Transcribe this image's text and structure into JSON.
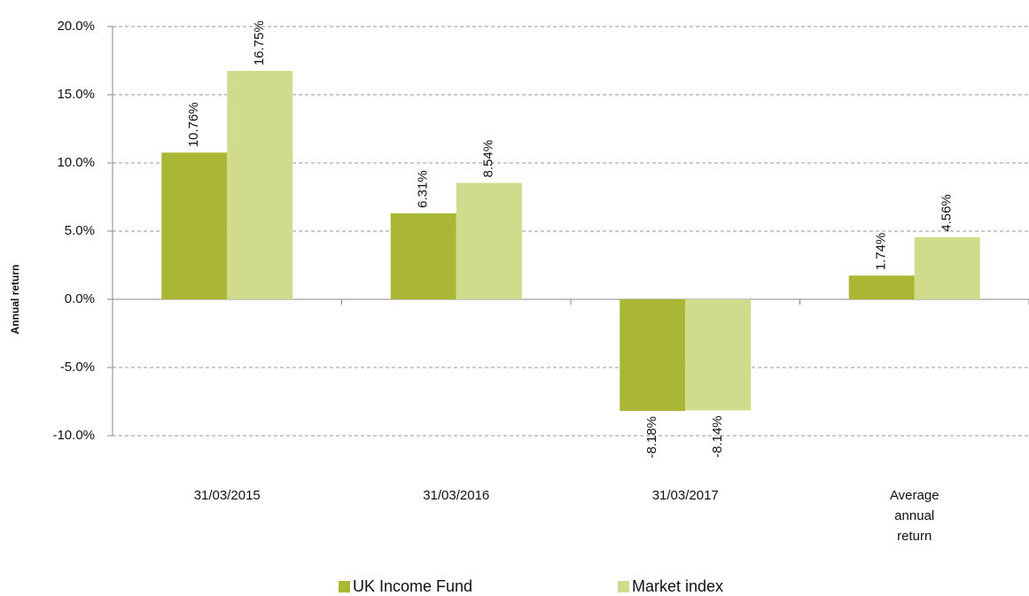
{
  "chart_data": {
    "type": "bar",
    "y_label": "Annual return",
    "categories": [
      "31/03/2015",
      "31/03/2016",
      "31/03/2017",
      "Average annual return"
    ],
    "series": [
      {
        "name": "UK Income Fund",
        "color": "#a9b734",
        "values": [
          10.76,
          6.31,
          -8.18,
          1.74
        ],
        "value_labels": [
          "10.76%",
          "6.31%",
          "-8.18%",
          "1.74%"
        ]
      },
      {
        "name": "Market index",
        "color": "#d0dc8b",
        "values": [
          16.75,
          8.54,
          -8.14,
          4.56
        ],
        "value_labels": [
          "16.75%",
          "8.54%",
          "-8.14%",
          "4.56%"
        ]
      }
    ],
    "ylim": [
      -10,
      20
    ],
    "yticks": [
      {
        "value": -10,
        "label": "-10.0%"
      },
      {
        "value": -5,
        "label": "-5.0%"
      },
      {
        "value": 0,
        "label": "0.0%"
      },
      {
        "value": 5,
        "label": "5.0%"
      },
      {
        "value": 10,
        "label": "10.0%"
      },
      {
        "value": 15,
        "label": "15.0%"
      },
      {
        "value": 20,
        "label": "20.0%"
      }
    ],
    "grid": true,
    "legend": "bottom"
  }
}
